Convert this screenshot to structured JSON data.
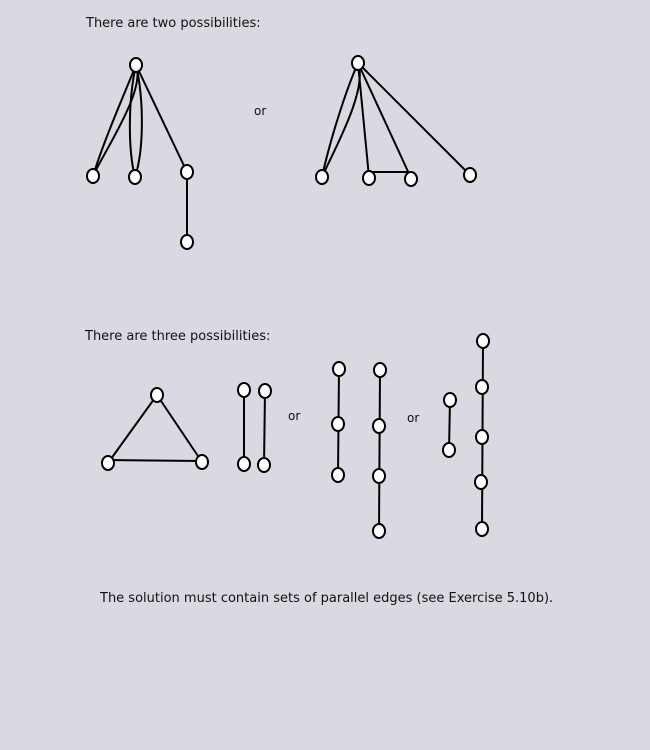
{
  "heading1": "There are two possibilities:",
  "heading2": "There are three possibilities:",
  "or_label": "or",
  "footer": "The solution must contain sets of parallel edges (see Exercise 5.10b)."
}
